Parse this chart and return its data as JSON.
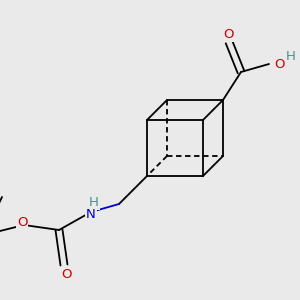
{
  "background_color": "#eaeaea",
  "bond_color": "#000000",
  "bond_width": 1.3,
  "atom_colors": {
    "O": "#cc0000",
    "N": "#0000cc",
    "H": "#4a9090",
    "C": "#000000"
  },
  "figsize": [
    3.0,
    3.0
  ],
  "dpi": 100
}
